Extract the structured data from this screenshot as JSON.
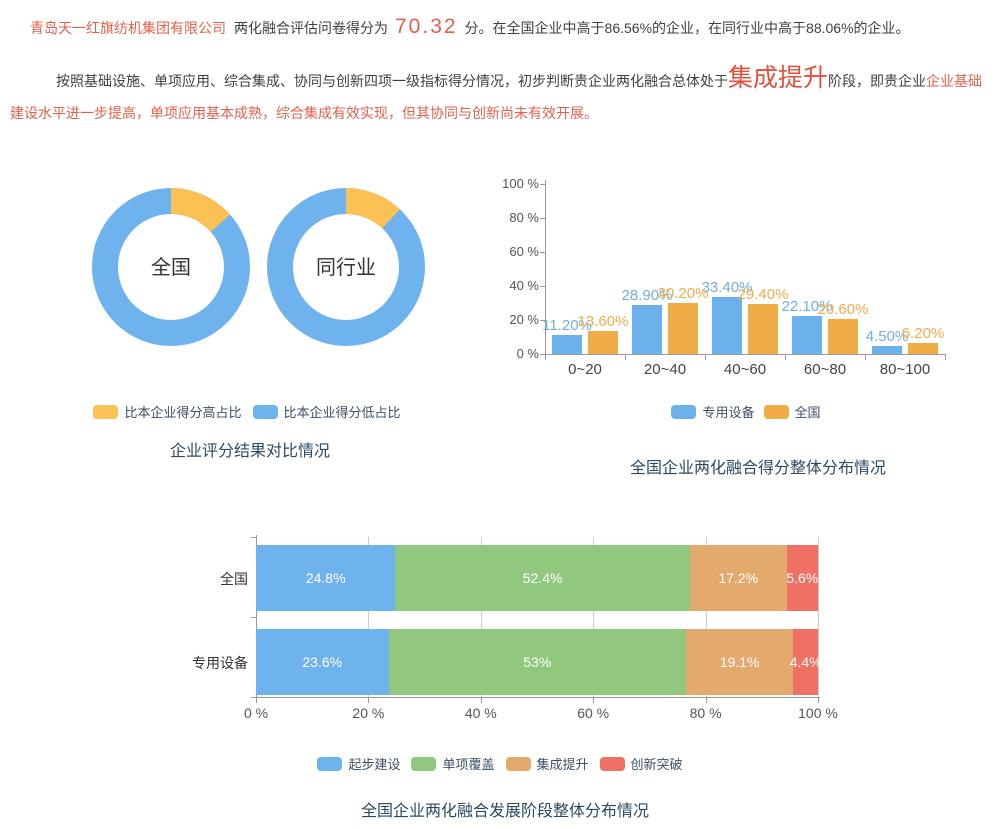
{
  "colors": {
    "accent_red": "#e2604a",
    "stage_red": "#e4503b",
    "body_red": "#e4604c",
    "blue": "#6fb3ee",
    "donut_yellow": "#fac254",
    "bar_orange": "#f0ad45",
    "green": "#92c87e",
    "stack_orange": "#e4a96c",
    "stack_red": "#ee7164",
    "title_navy": "#2c4a63"
  },
  "summary": {
    "company": "青岛天一红旗纺机集团有限公司",
    "score_prefix": "两化融合评估问卷得分为",
    "score": "70.32",
    "score_suffix": "分。在全国企业中高于86.56%的企业，在同行业中高于88.06%的企业。",
    "analysis_part1": "按照基础设施、单项应用、综合集成、协同与创新四项一级指标得分情况，初步判断贵企业两化融合总体处于",
    "analysis_stage": "集成提升",
    "analysis_part2": "阶段，即贵企业",
    "analysis_part3": "企业基础建设水平进一步提高，单项应用基本成熟，综合集成有效实现，但其协同与创新尚未有效开展。"
  },
  "chart_data": [
    {
      "type": "pie",
      "variant": "donut",
      "title": "企业评分结果对比情况",
      "donuts": [
        {
          "label": "全国",
          "slices": [
            {
              "name": "比本企业得分高占比",
              "value": 13.44,
              "color": "#fac254"
            },
            {
              "name": "比本企业得分低占比",
              "value": 86.56,
              "color": "#6fb3ee"
            }
          ]
        },
        {
          "label": "同行业",
          "slices": [
            {
              "name": "比本企业得分高占比",
              "value": 11.94,
              "color": "#fac254"
            },
            {
              "name": "比本企业得分低占比",
              "value": 88.06,
              "color": "#6fb3ee"
            }
          ]
        }
      ],
      "legend": [
        {
          "label": "比本企业得分高占比",
          "color": "#fac254"
        },
        {
          "label": "比本企业得分低占比",
          "color": "#6fb3ee"
        }
      ],
      "legend_position": "bottom"
    },
    {
      "type": "bar",
      "title": "全国企业两化融合得分整体分布情况",
      "categories": [
        "0~20",
        "20~40",
        "40~60",
        "60~80",
        "80~100"
      ],
      "series": [
        {
          "name": "专用设备",
          "color": "#6cb1ec",
          "label_color": "#74aede",
          "values": [
            11.2,
            28.9,
            33.4,
            22.1,
            4.5
          ],
          "value_labels": [
            "11.20%",
            "28.90%",
            "33.40%",
            "22.10%",
            "4.50%"
          ]
        },
        {
          "name": "全国",
          "color": "#f0ad45",
          "label_color": "#f0ac4a",
          "values": [
            13.6,
            30.2,
            29.4,
            20.6,
            6.2
          ],
          "value_labels": [
            "13.60%",
            "30.20%",
            "29.40%",
            "20.60%",
            "6.20%"
          ]
        }
      ],
      "ylabels": [
        "100 %",
        "80 %",
        "60 %",
        "40 %",
        "20 %",
        "0 %"
      ],
      "ylim": [
        0,
        100
      ],
      "grid": false,
      "legend": [
        {
          "label": "专用设备",
          "color": "#6cb1ec"
        },
        {
          "label": "全国",
          "color": "#f0ad45"
        }
      ],
      "legend_position": "bottom"
    },
    {
      "type": "stacked-bar-horizontal",
      "title": "全国企业两化融合发展阶段整体分布情况",
      "segments": [
        {
          "name": "起步建设",
          "color": "#6fb3ee"
        },
        {
          "name": "单项覆盖",
          "color": "#92c87e"
        },
        {
          "name": "集成提升",
          "color": "#e4a96c"
        },
        {
          "name": "创新突破",
          "color": "#ee7164"
        }
      ],
      "rows": [
        {
          "label": "全国",
          "values": [
            24.8,
            52.4,
            17.2,
            5.6
          ],
          "value_labels": [
            "24.8%",
            "52.4%",
            "17.2%",
            "5.6%"
          ]
        },
        {
          "label": "专用设备",
          "values": [
            23.6,
            53,
            19.1,
            4.4
          ],
          "value_labels": [
            "23.6%",
            "53%",
            "19.1%",
            "4.4%"
          ]
        }
      ],
      "xlabels": [
        "0 %",
        "20 %",
        "40 %",
        "60 %",
        "80 %",
        "100 %"
      ],
      "xlim": [
        0,
        100
      ],
      "grid": true,
      "legend": [
        {
          "label": "起步建设",
          "color": "#6fb3ee"
        },
        {
          "label": "单项覆盖",
          "color": "#92c87e"
        },
        {
          "label": "集成提升",
          "color": "#e4a96c"
        },
        {
          "label": "创新突破",
          "color": "#ee7164"
        }
      ],
      "legend_position": "bottom"
    }
  ]
}
